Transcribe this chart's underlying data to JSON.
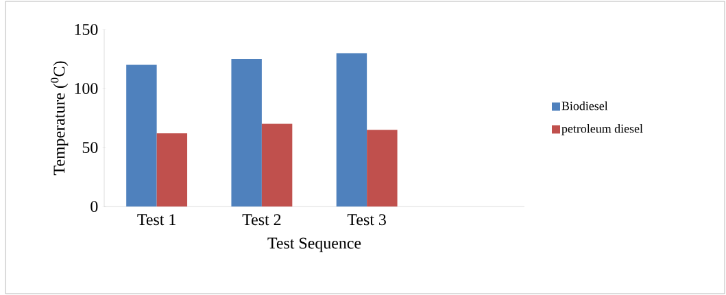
{
  "chart_data": {
    "type": "bar",
    "xlabel": "Test Sequence",
    "ylabel": "Temperature ($^{0}$C)",
    "categories": [
      "Test 1",
      "Test 2",
      "Test 3",
      null
    ],
    "series": [
      {
        "name": "Biodiesel",
        "color": "#4f81bd",
        "values": [
          120,
          125,
          130,
          null
        ]
      },
      {
        "name": "petroleum diesel",
        "color": "#c0504d",
        "values": [
          62,
          70,
          65,
          null
        ]
      }
    ],
    "ylim": [
      0,
      150
    ],
    "yticks": [
      0,
      50,
      100,
      150
    ],
    "grid": false,
    "legend": "right"
  }
}
